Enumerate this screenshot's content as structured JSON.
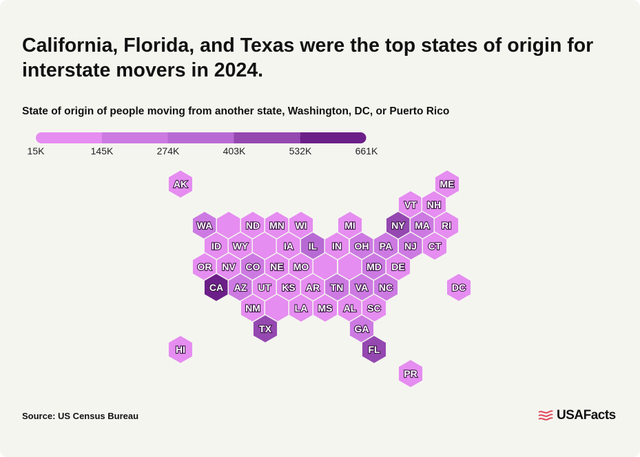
{
  "title": "California, Florida, and Texas were the top states of origin for interstate movers in 2024.",
  "subtitle": "State of origin of people moving from another state, Washington, DC, or Puerto Rico",
  "source": "Source: US Census Bureau",
  "brand": {
    "name": "USAFacts",
    "logo_icon": "usafacts-flag-icon",
    "logo_color": "#e0475a"
  },
  "legend": {
    "ticks": [
      "15K",
      "145K",
      "274K",
      "403K",
      "532K",
      "661K"
    ],
    "colors": [
      "#e58df0",
      "#cc7ae2",
      "#b86ad4",
      "#9448b0",
      "#6b1f88"
    ]
  },
  "tiles": [
    {
      "label": "AK",
      "bin": 0
    },
    {
      "label": "ME",
      "bin": 0
    },
    {
      "label": "VT",
      "bin": 0
    },
    {
      "label": "NH",
      "bin": 0
    },
    {
      "label": "WA",
      "bin": 1
    },
    {
      "label": "",
      "bin": 0
    },
    {
      "label": "ND",
      "bin": 0
    },
    {
      "label": "MN",
      "bin": 0
    },
    {
      "label": "WI",
      "bin": 0
    },
    {
      "label": "MI",
      "bin": 0
    },
    {
      "label": "NY",
      "bin": 3
    },
    {
      "label": "MA",
      "bin": 1
    },
    {
      "label": "RI",
      "bin": 0
    },
    {
      "label": "ID",
      "bin": 0
    },
    {
      "label": "WY",
      "bin": 0
    },
    {
      "label": "",
      "bin": 0
    },
    {
      "label": "IA",
      "bin": 0
    },
    {
      "label": "IL",
      "bin": 2
    },
    {
      "label": "IN",
      "bin": 0
    },
    {
      "label": "OH",
      "bin": 1
    },
    {
      "label": "PA",
      "bin": 1
    },
    {
      "label": "NJ",
      "bin": 1
    },
    {
      "label": "CT",
      "bin": 0
    },
    {
      "label": "OR",
      "bin": 0
    },
    {
      "label": "NV",
      "bin": 0
    },
    {
      "label": "CO",
      "bin": 1
    },
    {
      "label": "NE",
      "bin": 0
    },
    {
      "label": "MO",
      "bin": 0
    },
    {
      "label": "",
      "bin": 0
    },
    {
      "label": "",
      "bin": 0
    },
    {
      "label": "MD",
      "bin": 1
    },
    {
      "label": "DE",
      "bin": 0
    },
    {
      "label": "CA",
      "bin": 4
    },
    {
      "label": "AZ",
      "bin": 1
    },
    {
      "label": "UT",
      "bin": 0
    },
    {
      "label": "KS",
      "bin": 0
    },
    {
      "label": "AR",
      "bin": 0
    },
    {
      "label": "TN",
      "bin": 1
    },
    {
      "label": "VA",
      "bin": 1
    },
    {
      "label": "NC",
      "bin": 1
    },
    {
      "label": "DC",
      "bin": 0
    },
    {
      "label": "NM",
      "bin": 0
    },
    {
      "label": "",
      "bin": 0
    },
    {
      "label": "LA",
      "bin": 0
    },
    {
      "label": "MS",
      "bin": 0
    },
    {
      "label": "AL",
      "bin": 0
    },
    {
      "label": "SC",
      "bin": 0
    },
    {
      "label": "TX",
      "bin": 3
    },
    {
      "label": "GA",
      "bin": 1
    },
    {
      "label": "HI",
      "bin": 0
    },
    {
      "label": "FL",
      "bin": 3
    },
    {
      "label": "PR",
      "bin": 0
    }
  ]
}
